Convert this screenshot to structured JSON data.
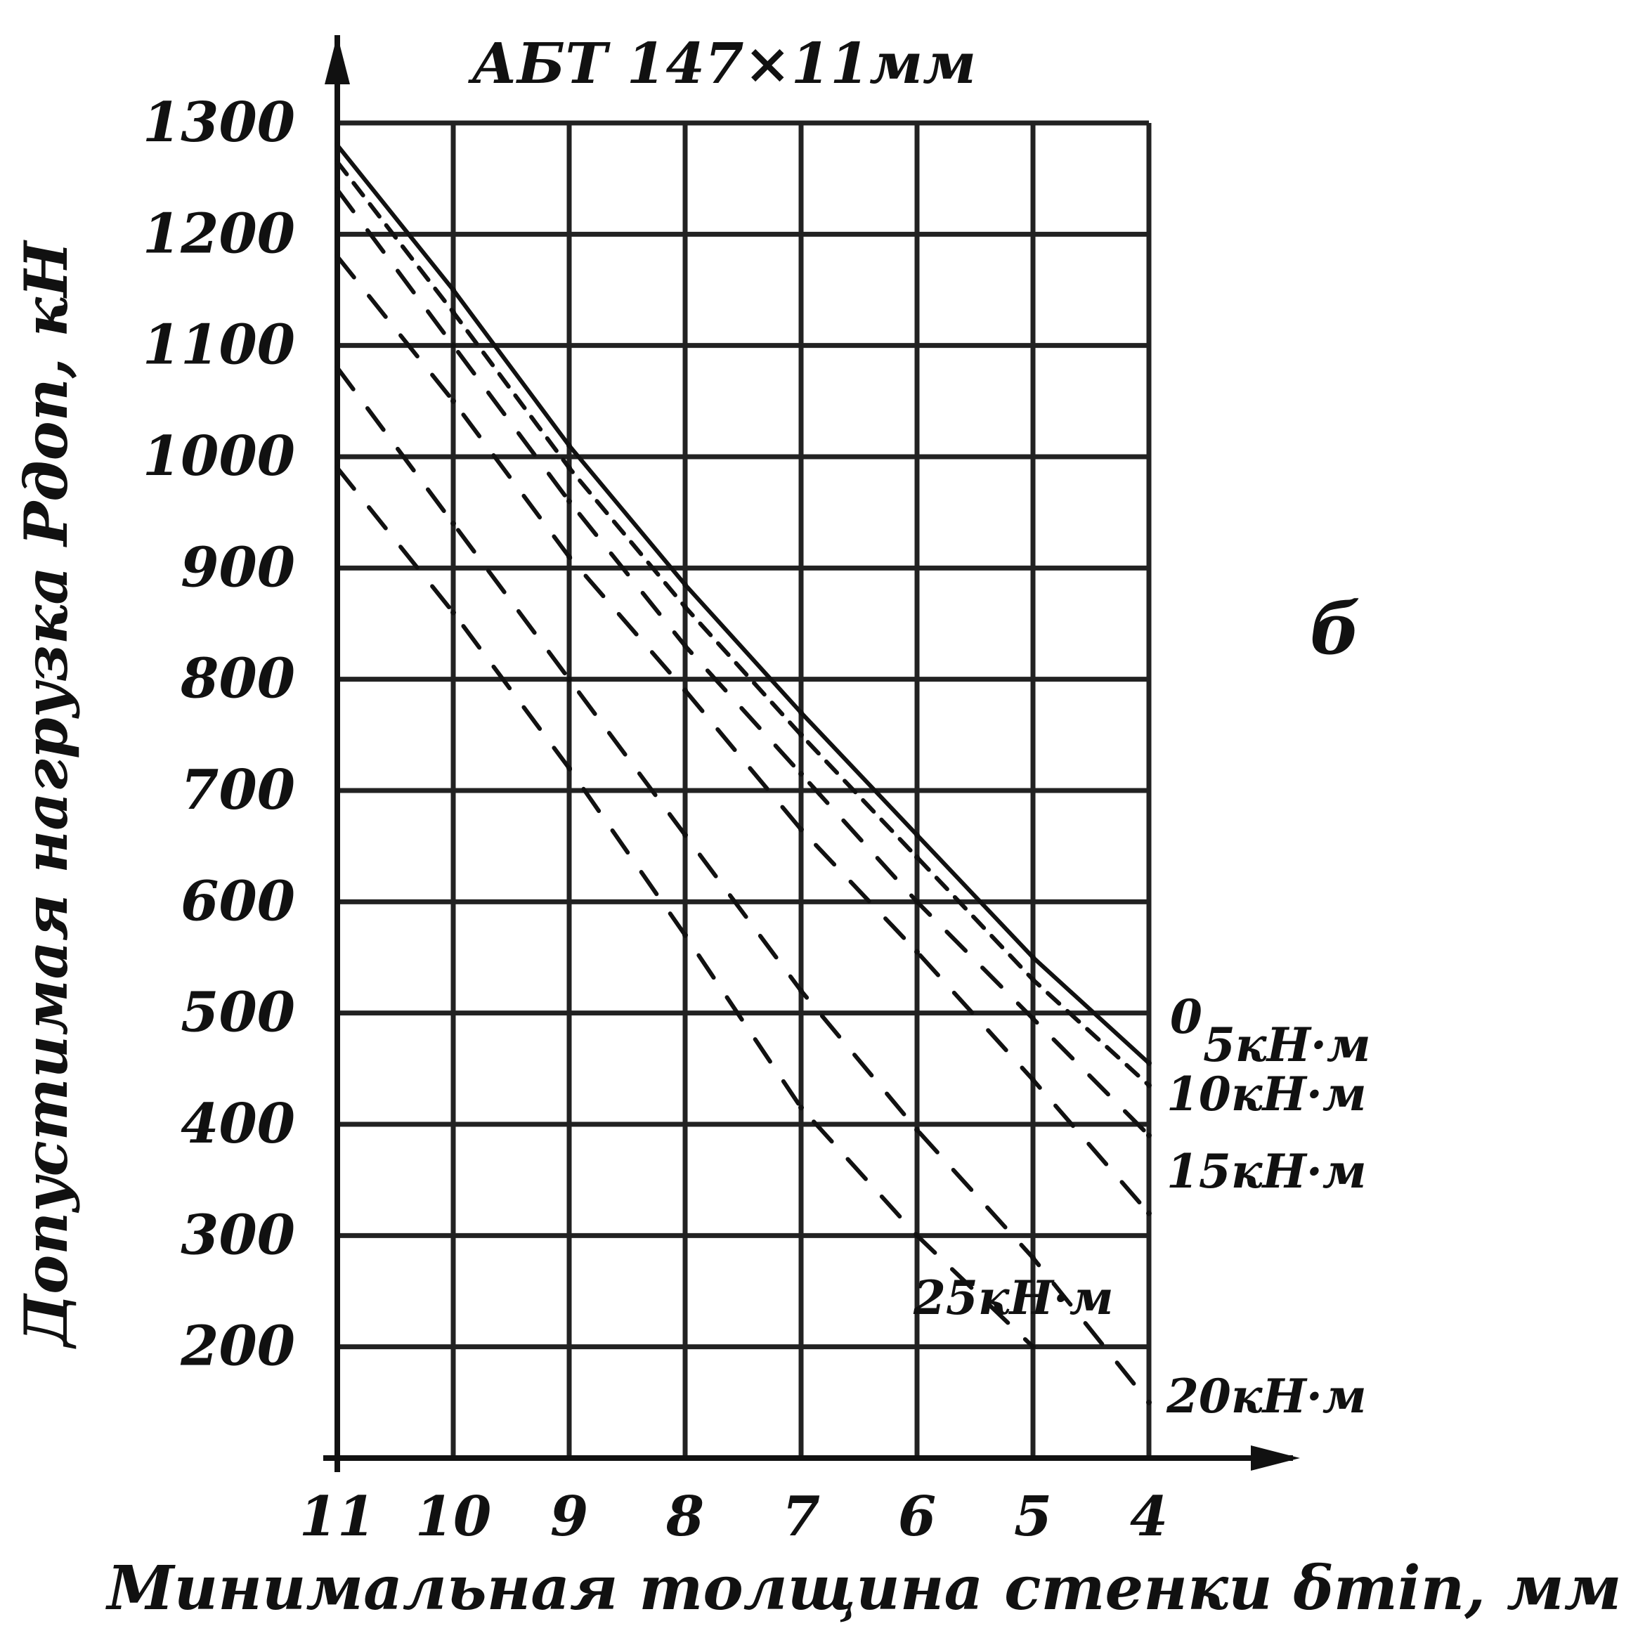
{
  "chart_data": {
    "type": "line",
    "title": "АБТ 147×11мм",
    "xlabel": "Минимальная толщина стенки δmin, мм",
    "ylabel": "Допустимая нагрузка Pдоп, кН",
    "side_label": "б",
    "x_ticks": [
      "11",
      "10",
      "9",
      "8",
      "7",
      "6",
      "5",
      "4"
    ],
    "y_ticks": [
      "1300",
      "1200",
      "1100",
      "1000",
      "900",
      "800",
      "700",
      "600",
      "500",
      "400",
      "300",
      "200"
    ],
    "xlim": [
      11,
      4
    ],
    "ylim": [
      100,
      1300
    ],
    "grid": true,
    "x_reversed": true,
    "series": [
      {
        "name": "0",
        "style": "solid",
        "points": [
          [
            11,
            1280
          ],
          [
            10,
            1150
          ],
          [
            9,
            1010
          ],
          [
            8,
            885
          ],
          [
            7,
            770
          ],
          [
            6,
            660
          ],
          [
            5,
            550
          ],
          [
            4,
            455
          ]
        ]
      },
      {
        "name": "5 кН·м",
        "style": "dashed",
        "points": [
          [
            11,
            1265
          ],
          [
            10,
            1130
          ],
          [
            9,
            990
          ],
          [
            8,
            865
          ],
          [
            7,
            750
          ],
          [
            6,
            640
          ],
          [
            5,
            530
          ],
          [
            4,
            435
          ]
        ]
      },
      {
        "name": "10 кН·м",
        "style": "dashed",
        "points": [
          [
            11,
            1240
          ],
          [
            10,
            1100
          ],
          [
            9,
            960
          ],
          [
            8,
            830
          ],
          [
            7,
            715
          ],
          [
            6,
            600
          ],
          [
            5,
            495
          ],
          [
            4,
            390
          ]
        ]
      },
      {
        "name": "15 кН·м",
        "style": "dashed",
        "points": [
          [
            11,
            1180
          ],
          [
            10,
            1050
          ],
          [
            9,
            910
          ],
          [
            8,
            790
          ],
          [
            7,
            665
          ],
          [
            6,
            555
          ],
          [
            5,
            440
          ],
          [
            4,
            320
          ]
        ]
      },
      {
        "name": "20 кН·м",
        "style": "dashed",
        "points": [
          [
            11,
            1080
          ],
          [
            10,
            940
          ],
          [
            9,
            800
          ],
          [
            8,
            660
          ],
          [
            7,
            520
          ],
          [
            6,
            395
          ],
          [
            5,
            280
          ],
          [
            4,
            150
          ]
        ]
      },
      {
        "name": "25 кН·м",
        "style": "dashed",
        "points": [
          [
            11,
            990
          ],
          [
            10,
            860
          ],
          [
            9,
            720
          ],
          [
            8,
            570
          ],
          [
            7,
            415
          ],
          [
            6,
            300
          ],
          [
            5,
            200
          ]
        ]
      }
    ],
    "curve_labels": [
      "0",
      "5кН·м",
      "10кН·м",
      "15кН·м",
      "25кН·м",
      "20кН·м"
    ]
  }
}
